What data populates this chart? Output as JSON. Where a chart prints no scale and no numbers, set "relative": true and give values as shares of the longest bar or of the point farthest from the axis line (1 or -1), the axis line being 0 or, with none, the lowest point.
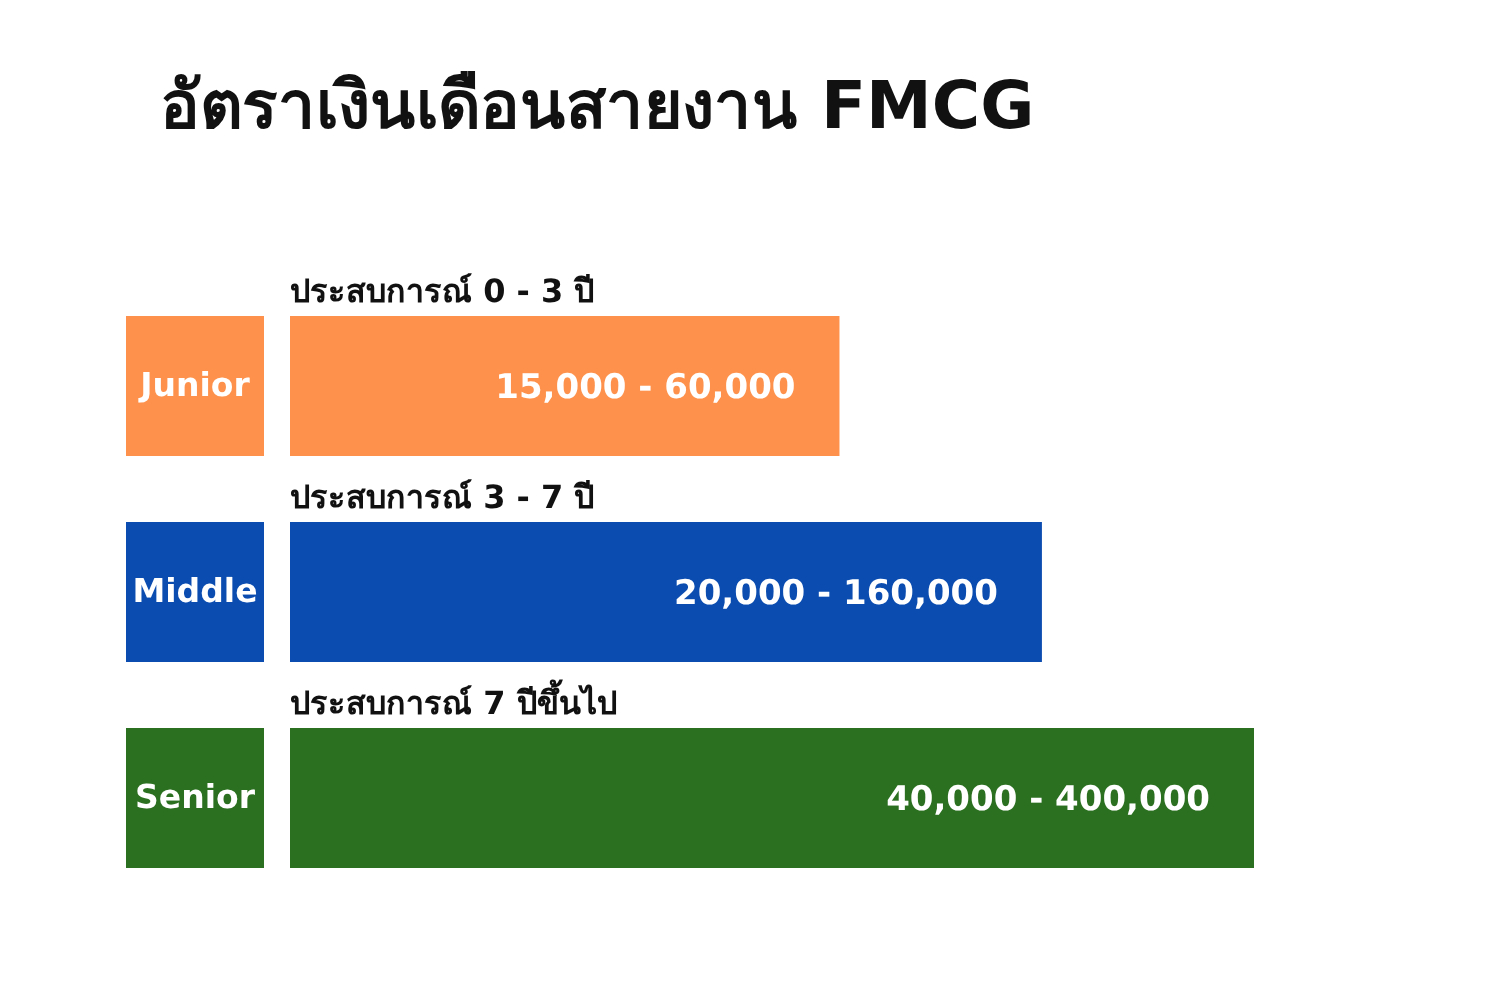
{
  "chart_data": {
    "type": "bar",
    "orientation": "horizontal",
    "relative": true,
    "title": "อัตราเงินเดือนสายงาน FMCG",
    "categories": [
      "Junior",
      "Middle",
      "Senior"
    ],
    "values": [
      0.57,
      0.78,
      1
    ],
    "colors": [
      "#fe924c",
      "#0a4cb0",
      "#2b6f20"
    ],
    "annotations": [
      "ประสบการณ์ 0 - 3 ปี",
      "ประสบการณ์ 3 - 7 ปี",
      "ประสบการณ์ 7 ปีขึ้นไป",
      "15,000 - 60,000",
      "20,000 - 160,000",
      "40,000 - 400,000"
    ]
  }
}
